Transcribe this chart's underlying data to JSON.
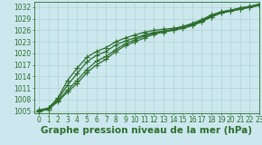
{
  "title": "Graphe pression niveau de la mer (hPa)",
  "background_color": "#cce8ee",
  "grid_color": "#aacccc",
  "line_color": "#2d6e2d",
  "xlim": [
    -0.5,
    23
  ],
  "ylim": [
    1004.5,
    1033.5
  ],
  "xticks": [
    0,
    1,
    2,
    3,
    4,
    5,
    6,
    7,
    8,
    9,
    10,
    11,
    12,
    13,
    14,
    15,
    16,
    17,
    18,
    19,
    20,
    21,
    22,
    23
  ],
  "yticks": [
    1005,
    1008,
    1011,
    1014,
    1017,
    1020,
    1023,
    1026,
    1029,
    1032
  ],
  "series": [
    [
      1005.3,
      1005.8,
      1008.2,
      1011.8,
      1014.8,
      1017.8,
      1019.5,
      1020.5,
      1022.2,
      1023.2,
      1024.0,
      1024.8,
      1025.5,
      1025.8,
      1026.2,
      1026.8,
      1027.5,
      1028.5,
      1029.8,
      1030.8,
      1031.2,
      1031.8,
      1032.2,
      1032.8
    ],
    [
      1005.0,
      1005.5,
      1007.5,
      1010.0,
      1012.2,
      1015.0,
      1017.0,
      1018.5,
      1020.5,
      1022.0,
      1023.0,
      1024.0,
      1025.0,
      1025.5,
      1026.0,
      1026.5,
      1027.2,
      1028.2,
      1029.5,
      1030.5,
      1031.0,
      1031.5,
      1032.0,
      1032.5
    ],
    [
      1005.0,
      1005.5,
      1007.8,
      1010.5,
      1013.0,
      1015.8,
      1018.0,
      1019.2,
      1021.0,
      1022.5,
      1023.5,
      1024.5,
      1025.2,
      1025.8,
      1026.2,
      1026.8,
      1027.5,
      1028.5,
      1029.5,
      1030.5,
      1031.0,
      1031.5,
      1032.0,
      1032.5
    ],
    [
      1005.2,
      1005.8,
      1008.5,
      1013.0,
      1016.2,
      1019.0,
      1020.5,
      1021.5,
      1023.0,
      1024.0,
      1024.8,
      1025.5,
      1026.0,
      1026.3,
      1026.5,
      1027.0,
      1027.8,
      1028.8,
      1030.0,
      1030.8,
      1031.2,
      1031.8,
      1032.2,
      1032.8
    ]
  ],
  "marker": "+",
  "marker_size": 4.5,
  "linewidth": 0.9,
  "title_fontsize": 7.5,
  "tick_fontsize": 5.5,
  "figsize": [
    2.9,
    1.6
  ],
  "dpi": 100
}
